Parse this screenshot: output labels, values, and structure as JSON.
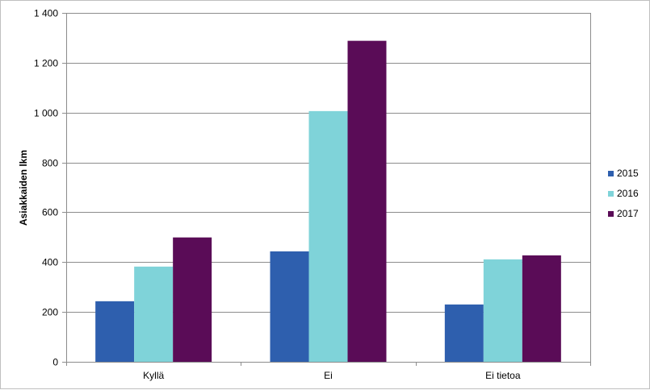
{
  "chart_data": {
    "type": "bar",
    "title": "",
    "xlabel": "",
    "ylabel": "Asiakkaiden lkm",
    "categories": [
      "Kyllä",
      "Ei",
      "Ei tietoa"
    ],
    "series": [
      {
        "name": "2015",
        "color": "#2e5fae",
        "values": [
          243,
          443,
          230
        ]
      },
      {
        "name": "2016",
        "color": "#7fd3d9",
        "values": [
          382,
          1006,
          411
        ]
      },
      {
        "name": "2017",
        "color": "#5a0c57",
        "values": [
          499,
          1288,
          427
        ]
      }
    ],
    "ylim": [
      0,
      1400
    ],
    "yticks": [
      0,
      200,
      400,
      600,
      800,
      1000,
      1200,
      1400
    ],
    "ytick_labels": [
      "0",
      "200",
      "400",
      "600",
      "800",
      "1 000",
      "1 200",
      "1 400"
    ],
    "grid": true,
    "legend_position": "right"
  }
}
